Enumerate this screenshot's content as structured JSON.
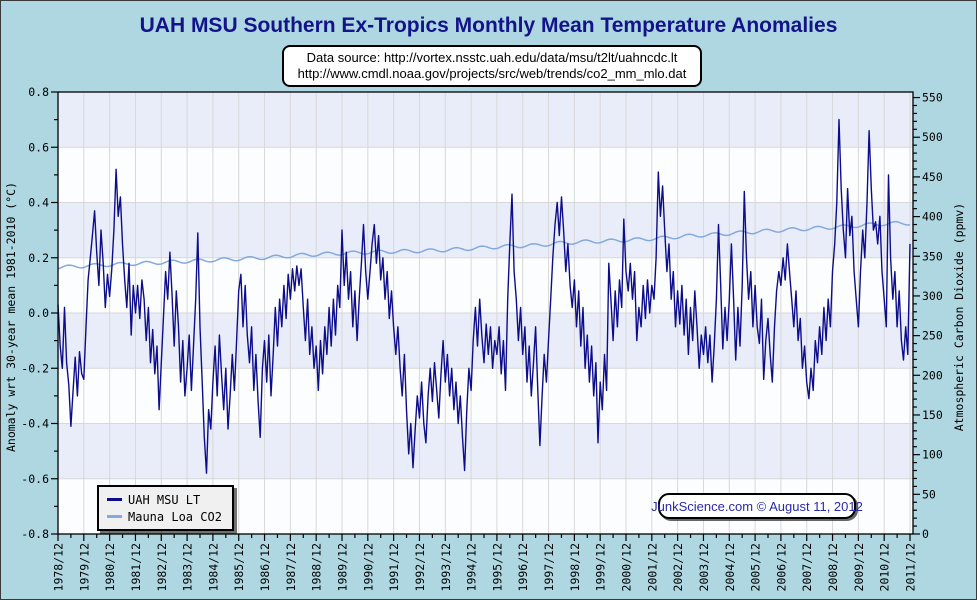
{
  "title": "UAH MSU Southern Ex-Tropics Monthly Mean Temperature Anomalies",
  "source_box": {
    "line1": "Data source: http://vortex.nsstc.uah.edu/data/msu/t2lt/uahncdc.lt",
    "line2": "http://www.cmdl.noaa.gov/projects/src/web/trends/co2_mm_mlo.dat"
  },
  "legend": {
    "items": [
      {
        "label": "UAH MSU LT",
        "color": "#0d0d8c"
      },
      {
        "label": "Mauna Loa CO2",
        "color": "#84aadd"
      }
    ]
  },
  "attribution": "JunkScience.com © August 11, 2012",
  "colors": {
    "background": "#aed7e2",
    "band_shaded": "#e9edf9",
    "band_plain": "#fcfdfe",
    "gridline": "#d8d8d8",
    "frame": "#000000",
    "temp_line": "#0d0d8c",
    "co2_line": "#84aadd",
    "title_text": "#14148a",
    "attribution_text": "#2a2aa8"
  },
  "chart_data": {
    "type": "line",
    "title": "UAH MSU Southern Ex-Tropics Monthly Mean Temperature Anomalies",
    "grid": true,
    "legend_position": "bottom-left",
    "x_axis": {
      "start": "1978/12",
      "end": "2011/12",
      "tick_labels": [
        "1978/12",
        "1979/12",
        "1980/12",
        "1981/12",
        "1982/12",
        "1983/12",
        "1984/12",
        "1985/12",
        "1986/12",
        "1987/12",
        "1988/12",
        "1989/12",
        "1990/12",
        "1991/12",
        "1992/12",
        "1993/12",
        "1994/12",
        "1995/12",
        "1996/12",
        "1997/12",
        "1998/12",
        "1999/12",
        "2000/12",
        "2001/12",
        "2002/12",
        "2003/12",
        "2004/12",
        "2005/12",
        "2006/12",
        "2007/12",
        "2008/12",
        "2009/12",
        "2010/12",
        "2011/12"
      ],
      "months_per_tick": 12,
      "minor_tick_months": 6
    },
    "left_axis": {
      "label": "Anomaly wrt 30-year mean 1981-2010 (°C)",
      "min": -0.8,
      "max": 0.8,
      "major_step": 0.2,
      "minor_step": 0.1,
      "tick_labels": [
        "0.8",
        "0.6",
        "0.4",
        "0.2",
        "0.0",
        "-0.2",
        "-0.4",
        "-0.6",
        "-0.8"
      ]
    },
    "right_axis": {
      "label": "Atmospheric Carbon Dioxide (ppmv)",
      "min": 0,
      "max": 557,
      "major_step": 50,
      "minor_step": 10,
      "tick_labels": [
        "550",
        "500",
        "450",
        "400",
        "350",
        "300",
        "250",
        "200",
        "150",
        "100",
        "50",
        "0"
      ]
    },
    "series": [
      {
        "name": "UAH MSU LT",
        "axis": "left",
        "color": "#0d0d8c",
        "start": "1978/12",
        "cadence": "monthly",
        "values": [
          0.03,
          -0.12,
          -0.2,
          0.02,
          -0.18,
          -0.26,
          -0.41,
          -0.28,
          -0.16,
          -0.3,
          -0.14,
          -0.22,
          -0.24,
          -0.05,
          0.12,
          0.2,
          0.28,
          0.37,
          0.22,
          0.1,
          0.3,
          0.18,
          0.02,
          0.14,
          0.06,
          0.16,
          0.3,
          0.52,
          0.35,
          0.42,
          0.25,
          0.12,
          0.02,
          0.18,
          -0.08,
          0.1,
          0.0,
          0.1,
          -0.02,
          0.12,
          0.05,
          -0.1,
          0.02,
          -0.18,
          -0.06,
          -0.22,
          -0.12,
          -0.35,
          -0.18,
          -0.02,
          0.15,
          0.05,
          0.22,
          0.07,
          -0.12,
          0.08,
          -0.05,
          -0.25,
          -0.1,
          -0.3,
          -0.2,
          -0.08,
          -0.28,
          -0.12,
          0.05,
          0.29,
          -0.05,
          -0.25,
          -0.45,
          -0.58,
          -0.35,
          -0.42,
          -0.25,
          -0.12,
          -0.3,
          -0.08,
          -0.22,
          -0.35,
          -0.2,
          -0.42,
          -0.3,
          -0.15,
          -0.28,
          -0.1,
          0.08,
          0.14,
          -0.05,
          0.1,
          -0.08,
          -0.18,
          -0.05,
          -0.28,
          -0.15,
          -0.32,
          -0.45,
          -0.2,
          -0.1,
          -0.25,
          -0.08,
          -0.3,
          -0.15,
          0.02,
          -0.12,
          0.05,
          -0.05,
          0.1,
          -0.02,
          0.14,
          0.05,
          0.16,
          0.08,
          0.17,
          0.1,
          0.16,
          0.02,
          -0.1,
          0.05,
          -0.15,
          -0.05,
          -0.2,
          -0.12,
          -0.28,
          -0.1,
          -0.22,
          -0.05,
          -0.15,
          0.02,
          -0.12,
          0.05,
          -0.08,
          0.1,
          0.02,
          0.3,
          0.1,
          0.22,
          0.05,
          0.15,
          -0.05,
          0.08,
          -0.1,
          0.05,
          0.18,
          0.32,
          0.15,
          0.05,
          0.15,
          0.25,
          0.32,
          0.18,
          0.28,
          0.12,
          0.2,
          0.05,
          0.15,
          -0.02,
          0.08,
          -0.05,
          -0.15,
          -0.05,
          -0.2,
          -0.3,
          -0.15,
          -0.35,
          -0.51,
          -0.4,
          -0.56,
          -0.42,
          -0.3,
          -0.38,
          -0.25,
          -0.4,
          -0.47,
          -0.3,
          -0.2,
          -0.32,
          -0.18,
          -0.28,
          -0.38,
          -0.22,
          -0.1,
          -0.25,
          -0.15,
          -0.3,
          -0.2,
          -0.35,
          -0.25,
          -0.4,
          -0.3,
          -0.45,
          -0.57,
          -0.35,
          -0.2,
          -0.28,
          -0.1,
          0.02,
          -0.12,
          0.05,
          -0.08,
          -0.18,
          -0.04,
          -0.15,
          -0.05,
          -0.2,
          -0.1,
          -0.15,
          -0.05,
          -0.22,
          -0.1,
          -0.28,
          0.05,
          0.25,
          0.43,
          0.15,
          0.05,
          -0.1,
          0.02,
          -0.15,
          -0.05,
          -0.25,
          -0.12,
          -0.3,
          -0.18,
          -0.05,
          -0.28,
          -0.48,
          -0.3,
          -0.15,
          -0.25,
          -0.1,
          0.05,
          0.2,
          0.32,
          0.4,
          0.28,
          0.42,
          0.3,
          0.15,
          0.25,
          0.1,
          0.02,
          0.12,
          -0.05,
          0.08,
          -0.12,
          0.02,
          -0.2,
          -0.08,
          -0.25,
          -0.12,
          -0.3,
          -0.18,
          -0.47,
          -0.25,
          -0.35,
          -0.15,
          -0.28,
          0.18,
          0.05,
          -0.1,
          0.08,
          -0.05,
          0.12,
          0.02,
          0.34,
          0.15,
          0.08,
          0.18,
          0.05,
          0.15,
          -0.1,
          0.02,
          -0.05,
          0.1,
          -0.02,
          0.12,
          0.0,
          0.1,
          0.05,
          0.2,
          0.51,
          0.35,
          0.46,
          0.3,
          0.15,
          0.25,
          0.05,
          0.15,
          -0.05,
          0.08,
          -0.04,
          0.1,
          -0.08,
          0.05,
          -0.15,
          0.02,
          -0.1,
          0.08,
          -0.05,
          -0.2,
          -0.08,
          -0.15,
          -0.05,
          -0.18,
          -0.08,
          -0.25,
          -0.12,
          0.05,
          0.32,
          0.1,
          -0.13,
          0.02,
          -0.1,
          0.05,
          0.25,
          0.05,
          -0.17,
          0.02,
          -0.12,
          0.1,
          0.44,
          0.2,
          0.05,
          0.15,
          -0.05,
          0.1,
          -0.05,
          -0.11,
          0.05,
          -0.24,
          -0.1,
          -0.02,
          -0.15,
          -0.25,
          -0.05,
          0.08,
          0.15,
          0.1,
          0.2,
          0.12,
          0.25,
          0.15,
          0.05,
          -0.05,
          0.08,
          -0.1,
          -0.02,
          -0.2,
          -0.12,
          -0.25,
          -0.31,
          -0.2,
          -0.28,
          -0.1,
          -0.18,
          -0.05,
          -0.15,
          0.02,
          -0.1,
          0.05,
          -0.05,
          0.15,
          0.25,
          0.4,
          0.7,
          0.45,
          0.3,
          0.2,
          0.45,
          0.28,
          0.35,
          0.15,
          0.05,
          -0.05,
          0.15,
          0.3,
          0.2,
          0.4,
          0.66,
          0.45,
          0.3,
          0.33,
          0.25,
          0.35,
          0.15,
          0.05,
          -0.05,
          0.5,
          0.2,
          0.05,
          0.15,
          -0.05,
          0.08,
          -0.1,
          -0.17,
          -0.05,
          -0.15,
          0.25
        ]
      },
      {
        "name": "Mauna Loa CO2",
        "axis": "right",
        "color": "#84aadd",
        "cadence": "annual-mean-with-seasonal-cycle",
        "start_year": 1978,
        "annual_values": [
          335.4,
          336.8,
          338.7,
          340.1,
          341.4,
          343.0,
          344.4,
          346.0,
          347.4,
          349.2,
          351.6,
          353.1,
          354.4,
          355.6,
          356.4,
          357.1,
          358.8,
          360.8,
          362.6,
          363.7,
          366.7,
          368.4,
          369.5,
          371.1,
          373.2,
          375.8,
          377.5,
          379.8,
          381.9,
          383.8,
          385.6,
          387.4,
          389.9,
          391.6
        ],
        "seasonal_amplitude_ppm": 2.2,
        "seasonal_peak_month": 5
      }
    ]
  }
}
